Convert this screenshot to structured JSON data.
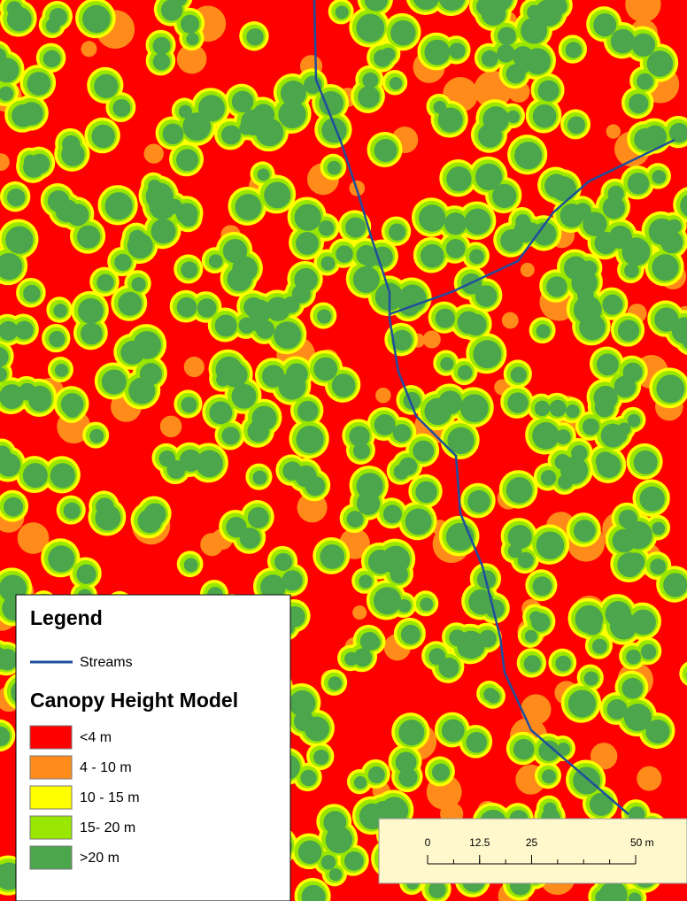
{
  "legend": {
    "title": "Legend",
    "line_items": [
      {
        "label": "Streams",
        "color": "#1f4e9c"
      }
    ],
    "section_title": "Canopy Height Model",
    "items": [
      {
        "label": "<4 m",
        "color": "#ff0000"
      },
      {
        "label": "4 - 10 m",
        "color": "#ff8c1a"
      },
      {
        "label": "10 - 15 m",
        "color": "#ffff00"
      },
      {
        "label": "15- 20 m",
        "color": "#99e600"
      },
      {
        "label": ">20 m",
        "color": "#4ca64c"
      }
    ]
  },
  "scale_bar": {
    "ticks": [
      {
        "value": 0,
        "label": "0"
      },
      {
        "value": 12.5,
        "label": "12.5"
      },
      {
        "value": 25,
        "label": "25"
      },
      {
        "value": 50,
        "label": "50 m"
      }
    ]
  }
}
